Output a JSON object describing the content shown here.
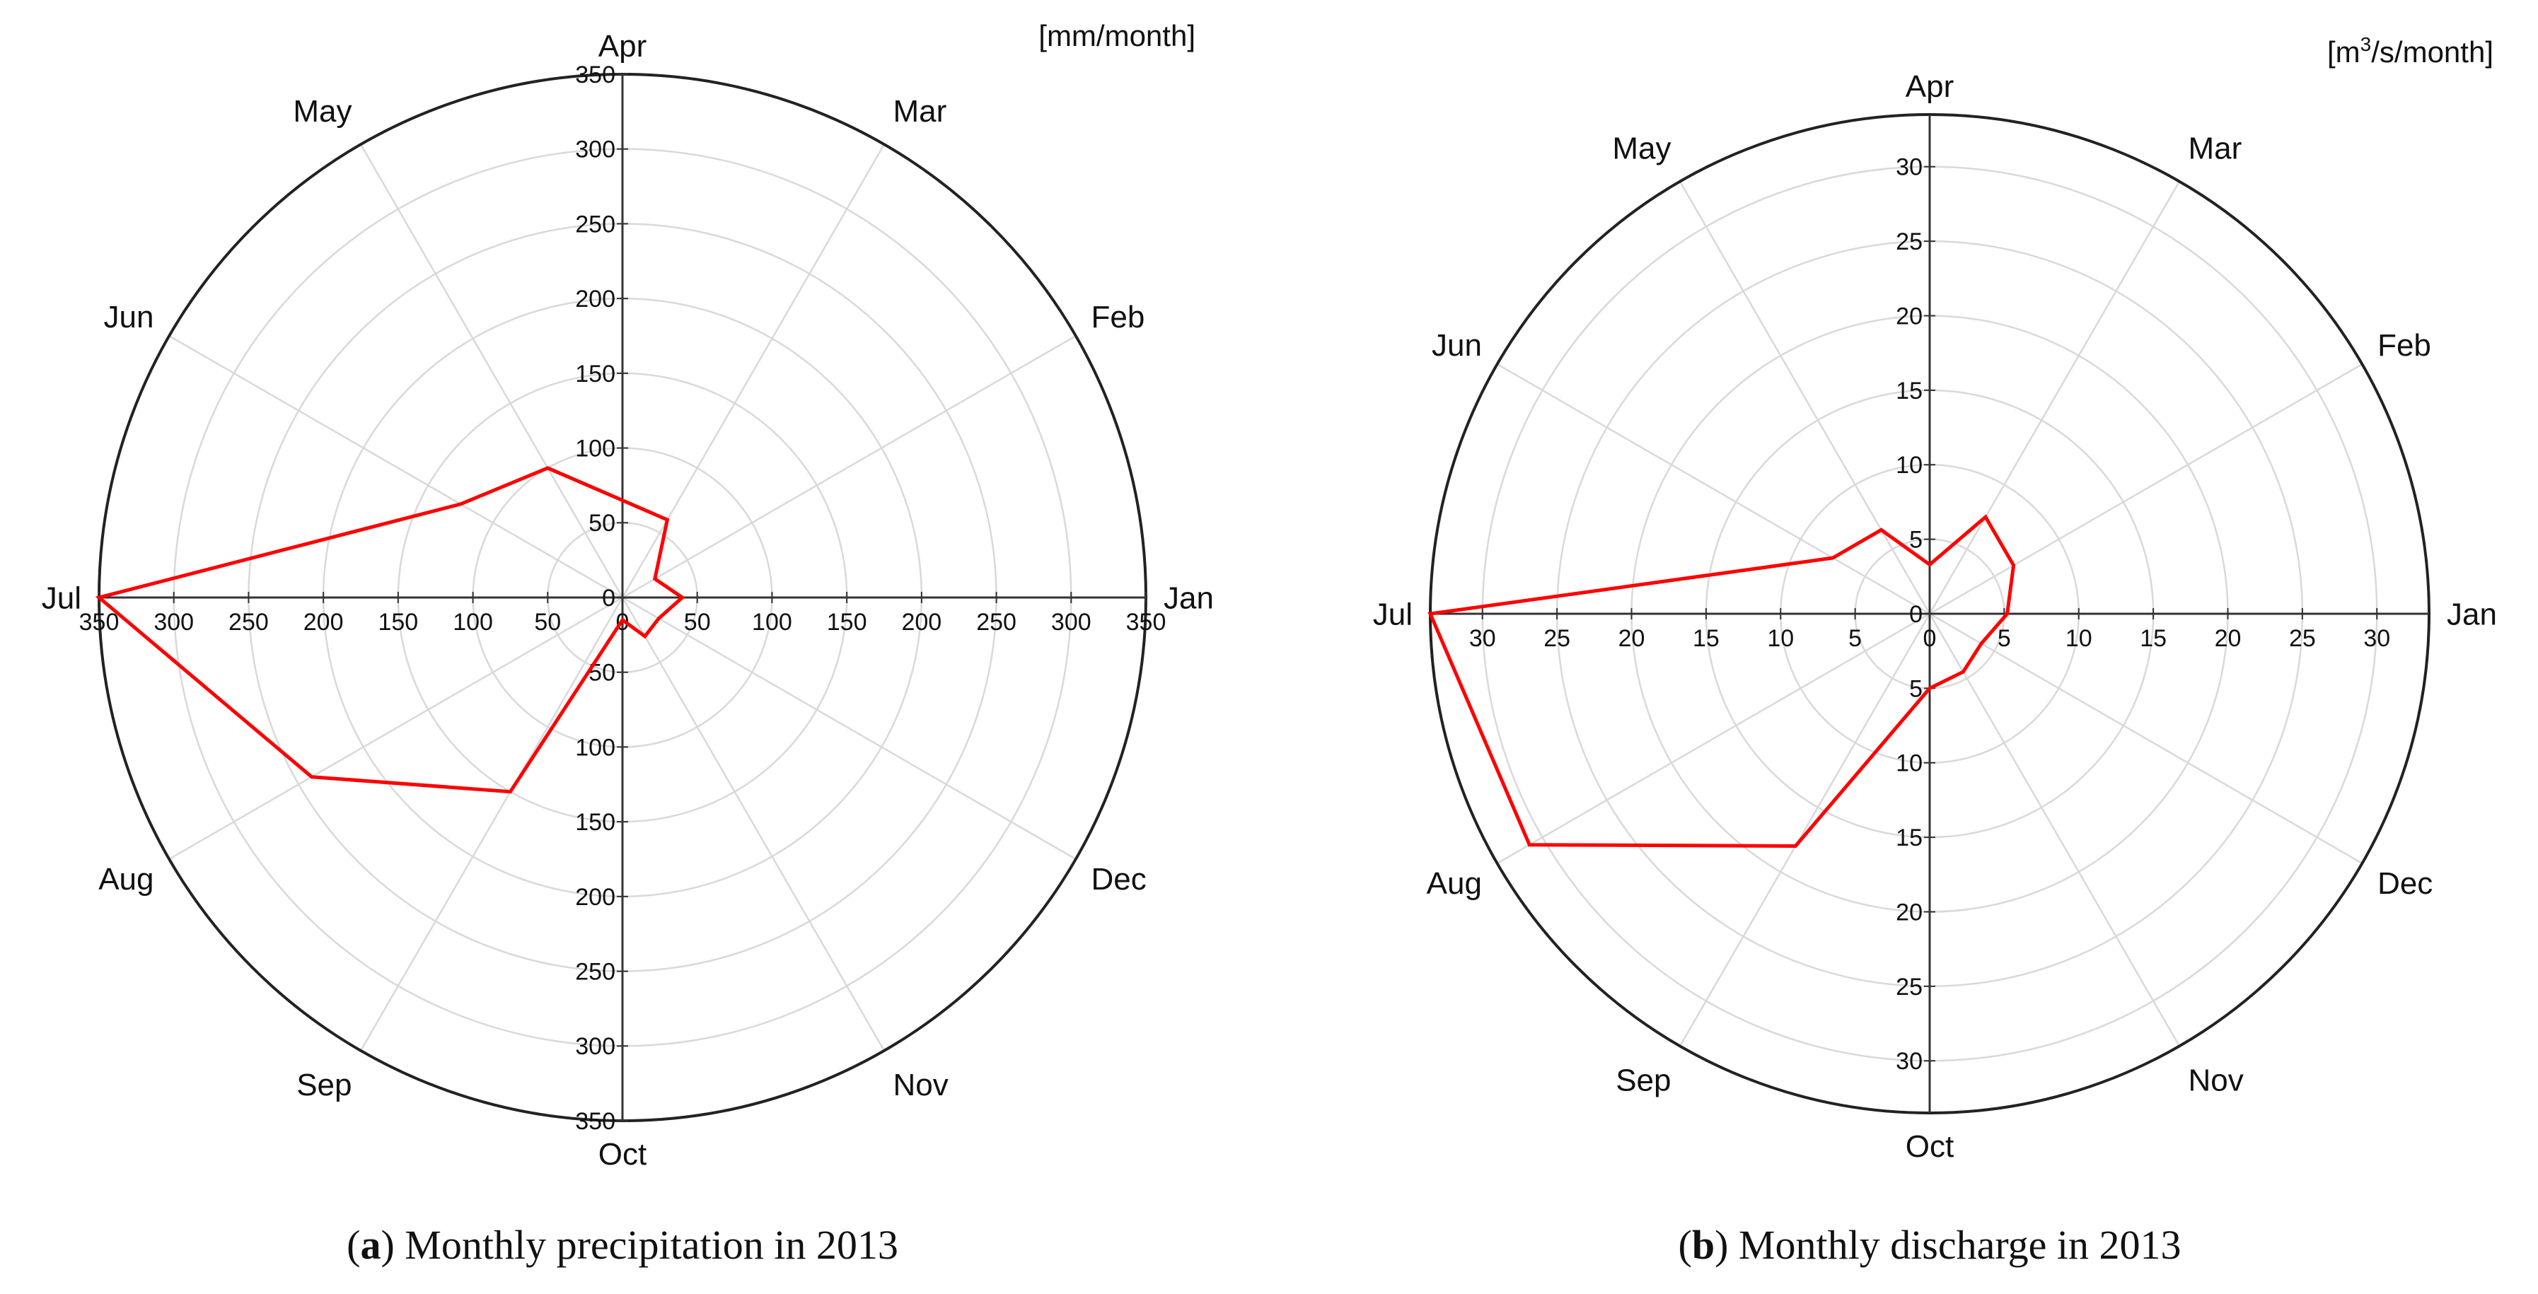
{
  "chart_data": [
    {
      "type": "radar",
      "unit_label": "[mm/month]",
      "unit_superscript": "",
      "unit_suffix": "",
      "caption_letter": "a",
      "caption_text": "Monthly precipitation in 2013",
      "rmax": 350,
      "rings": [
        50,
        100,
        150,
        200,
        250,
        300,
        350
      ],
      "tick_labels": [
        "0",
        "50",
        "100",
        "150",
        "200",
        "250",
        "300",
        "350"
      ],
      "categories": [
        "Jan",
        "Feb",
        "Mar",
        "Apr",
        "May",
        "Jun",
        "Jul",
        "Aug",
        "Sep",
        "Oct",
        "Nov",
        "Dec"
      ],
      "series": [
        {
          "name": "Precipitation 2013",
          "color": "#ff0000",
          "values": [
            40,
            25,
            60,
            65,
            100,
            125,
            350,
            240,
            150,
            15,
            30,
            28
          ]
        }
      ]
    },
    {
      "type": "radar",
      "unit_label": "[m",
      "unit_superscript": "3",
      "unit_suffix": "/s/month]",
      "caption_letter": "b",
      "caption_text": "Monthly discharge in 2013",
      "rmax": 33.5,
      "rings": [
        5,
        10,
        15,
        20,
        25,
        30
      ],
      "tick_labels": [
        "0",
        "5",
        "10",
        "15",
        "20",
        "25",
        "30"
      ],
      "categories": [
        "Jan",
        "Feb",
        "Mar",
        "Apr",
        "May",
        "Jun",
        "Jul",
        "Aug",
        "Sep",
        "Oct",
        "Nov",
        "Dec"
      ],
      "series": [
        {
          "name": "Discharge 2013",
          "color": "#ff0000",
          "values": [
            5.2,
            6.5,
            7.5,
            3.3,
            6.5,
            7.5,
            33.5,
            31,
            18,
            5,
            4.5,
            4
          ]
        }
      ]
    }
  ]
}
